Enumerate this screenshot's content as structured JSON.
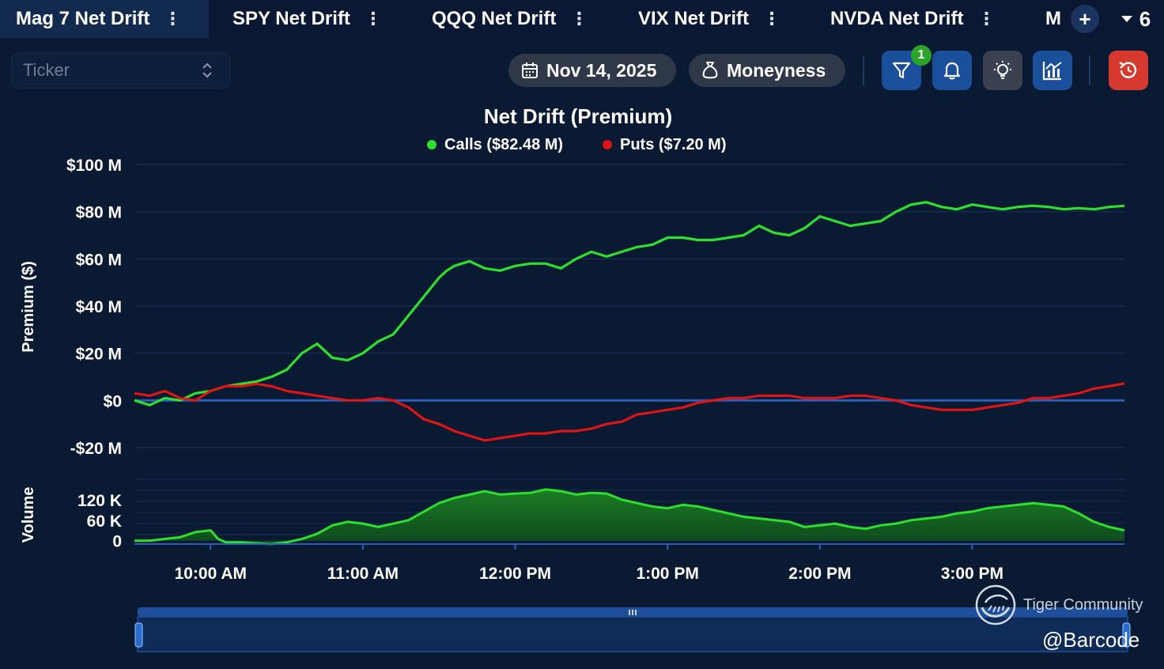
{
  "tabs": [
    {
      "label": "Mag 7 Net Drift",
      "active": true
    },
    {
      "label": "SPY Net Drift",
      "active": false
    },
    {
      "label": "QQQ Net Drift",
      "active": false
    },
    {
      "label": "VIX Net Drift",
      "active": false
    },
    {
      "label": "NVDA Net Drift",
      "active": false
    },
    {
      "label": "M",
      "active": false
    }
  ],
  "tab_menu_glyph": "⋮",
  "tab_add_glyph": "+",
  "tab_count": "6",
  "toolbar": {
    "ticker_placeholder": "Ticker",
    "date_label": "Nov 14, 2025",
    "moneyness_label": "Moneyness",
    "filter_badge": "1"
  },
  "colors": {
    "calls": "#2ee02e",
    "puts": "#e01414",
    "filter_btn": "#1a4f9c",
    "alert_btn": "#1a4f9c",
    "idea_btn": "#3a4252",
    "chart_btn": "#1a4f9c",
    "reset_btn": "#d63a2e"
  },
  "chart_data": {
    "type": "line",
    "title": "Net Drift (Premium)",
    "legend": [
      {
        "label": "Calls ($82.48 M)",
        "color": "#2ee02e"
      },
      {
        "label": "Puts ($7.20 M)",
        "color": "#e01414"
      }
    ],
    "ylabel": "Premium ($)",
    "ylim": [
      -20,
      100
    ],
    "y_ticks": [
      {
        "value": 100,
        "label": "$100 M"
      },
      {
        "value": 80,
        "label": "$80 M"
      },
      {
        "value": 60,
        "label": "$60 M"
      },
      {
        "value": 40,
        "label": "$40 M"
      },
      {
        "value": 20,
        "label": "$20 M"
      },
      {
        "value": 0,
        "label": "$0"
      },
      {
        "value": -20,
        "label": "-$20 M"
      }
    ],
    "x_ticks": [
      {
        "hour": 10,
        "label": "10:00 AM"
      },
      {
        "hour": 11,
        "label": "11:00 AM"
      },
      {
        "hour": 12,
        "label": "12:00 PM"
      },
      {
        "hour": 13,
        "label": "1:00 PM"
      },
      {
        "hour": 14,
        "label": "2:00 PM"
      },
      {
        "hour": 15,
        "label": "3:00 PM"
      }
    ],
    "x_range_hours": [
      9.5,
      16.0
    ],
    "series": [
      {
        "name": "Calls",
        "color": "#2ee02e",
        "x": [
          9.5,
          9.6,
          9.7,
          9.8,
          9.9,
          10.0,
          10.1,
          10.2,
          10.3,
          10.4,
          10.5,
          10.6,
          10.7,
          10.75,
          10.8,
          10.9,
          11.0,
          11.1,
          11.2,
          11.3,
          11.4,
          11.5,
          11.55,
          11.6,
          11.7,
          11.8,
          11.9,
          12.0,
          12.1,
          12.2,
          12.3,
          12.4,
          12.5,
          12.6,
          12.7,
          12.8,
          12.9,
          13.0,
          13.1,
          13.2,
          13.3,
          13.4,
          13.5,
          13.6,
          13.7,
          13.8,
          13.9,
          14.0,
          14.1,
          14.2,
          14.3,
          14.4,
          14.5,
          14.6,
          14.7,
          14.8,
          14.9,
          15.0,
          15.1,
          15.2,
          15.3,
          15.4,
          15.5,
          15.6,
          15.7,
          15.8,
          15.9,
          16.0
        ],
        "values": [
          0,
          -2,
          1,
          0,
          3,
          4,
          6,
          7,
          8,
          10,
          13,
          20,
          24,
          21,
          18,
          17,
          20,
          25,
          28,
          36,
          44,
          52,
          55,
          57,
          59,
          56,
          55,
          57,
          58,
          58,
          56,
          60,
          63,
          61,
          63,
          65,
          66,
          69,
          69,
          68,
          68,
          69,
          70,
          74,
          71,
          70,
          73,
          78,
          76,
          74,
          75,
          76,
          80,
          83,
          84,
          82,
          81,
          83,
          82,
          81,
          82,
          82.5,
          82,
          81,
          81.5,
          81,
          82,
          82.48
        ]
      },
      {
        "name": "Puts",
        "color": "#e01414",
        "x": [
          9.5,
          9.6,
          9.7,
          9.8,
          9.9,
          10.0,
          10.1,
          10.2,
          10.3,
          10.4,
          10.5,
          10.6,
          10.7,
          10.8,
          10.9,
          11.0,
          11.1,
          11.2,
          11.3,
          11.4,
          11.5,
          11.6,
          11.7,
          11.8,
          11.9,
          12.0,
          12.1,
          12.2,
          12.3,
          12.4,
          12.5,
          12.6,
          12.7,
          12.8,
          12.9,
          13.0,
          13.1,
          13.2,
          13.3,
          13.4,
          13.5,
          13.6,
          13.7,
          13.8,
          13.9,
          14.0,
          14.1,
          14.2,
          14.3,
          14.4,
          14.5,
          14.6,
          14.7,
          14.8,
          14.9,
          15.0,
          15.1,
          15.2,
          15.3,
          15.4,
          15.5,
          15.6,
          15.7,
          15.8,
          15.9,
          16.0
        ],
        "values": [
          3,
          2,
          4,
          1,
          0,
          4,
          6,
          6,
          7,
          6,
          4,
          3,
          2,
          1,
          0,
          0,
          1,
          0,
          -3,
          -8,
          -10,
          -13,
          -15,
          -17,
          -16,
          -15,
          -14,
          -14,
          -13,
          -13,
          -12,
          -10,
          -9,
          -6,
          -5,
          -4,
          -3,
          -1,
          0,
          1,
          1,
          2,
          2,
          2,
          1,
          1,
          1,
          2,
          2,
          1,
          0,
          -2,
          -3,
          -4,
          -4,
          -4,
          -3,
          -2,
          -1,
          1,
          1,
          2,
          3,
          5,
          6,
          7.2
        ]
      }
    ],
    "volume": {
      "ylabel": "Volume",
      "y_ticks": [
        {
          "value": 120,
          "label": "120 K"
        },
        {
          "value": 60,
          "label": "60 K"
        },
        {
          "value": 0,
          "label": "0"
        }
      ],
      "ylim": [
        -10,
        180
      ],
      "x": [
        9.5,
        9.6,
        9.7,
        9.8,
        9.9,
        10.0,
        10.05,
        10.1,
        10.2,
        10.3,
        10.4,
        10.5,
        10.6,
        10.7,
        10.8,
        10.9,
        11.0,
        11.1,
        11.2,
        11.3,
        11.4,
        11.5,
        11.6,
        11.7,
        11.8,
        11.9,
        12.0,
        12.1,
        12.2,
        12.3,
        12.4,
        12.5,
        12.6,
        12.7,
        12.8,
        12.9,
        13.0,
        13.1,
        13.2,
        13.3,
        13.4,
        13.5,
        13.6,
        13.7,
        13.8,
        13.9,
        14.0,
        14.1,
        14.2,
        14.3,
        14.4,
        14.5,
        14.6,
        14.7,
        14.8,
        14.9,
        15.0,
        15.1,
        15.2,
        15.3,
        15.4,
        15.5,
        15.6,
        15.7,
        15.8,
        15.9,
        16.0
      ],
      "values": [
        0,
        0,
        5,
        10,
        25,
        30,
        5,
        -5,
        -5,
        -8,
        -10,
        -5,
        5,
        20,
        45,
        55,
        50,
        40,
        50,
        60,
        85,
        110,
        125,
        135,
        145,
        135,
        138,
        140,
        150,
        145,
        135,
        140,
        138,
        120,
        110,
        100,
        95,
        105,
        100,
        90,
        80,
        70,
        65,
        60,
        55,
        40,
        45,
        50,
        40,
        35,
        45,
        50,
        60,
        65,
        70,
        80,
        85,
        95,
        100,
        105,
        110,
        105,
        100,
        80,
        55,
        40,
        30
      ]
    }
  },
  "watermark": {
    "brand": "Tiger Community",
    "handle": "@Barcode"
  }
}
